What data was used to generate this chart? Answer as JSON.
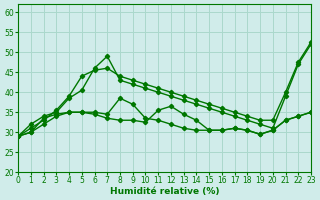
{
  "background_color": "#d0ecea",
  "grid_color": "#aad8cc",
  "line_color": "#007700",
  "xlabel": "Humidité relative (%)",
  "ylim": [
    20,
    62
  ],
  "xlim": [
    0,
    23
  ],
  "yticks": [
    20,
    25,
    30,
    35,
    40,
    45,
    50,
    55,
    60
  ],
  "xticks": [
    0,
    1,
    2,
    3,
    4,
    5,
    6,
    7,
    8,
    9,
    10,
    11,
    12,
    13,
    14,
    15,
    16,
    17,
    18,
    19,
    20,
    21,
    22,
    23
  ],
  "series": [
    [
      29,
      32,
      34,
      35,
      38.5,
      40.5,
      46,
      49,
      43,
      42,
      41,
      40,
      39,
      38,
      37,
      36,
      35,
      34,
      33,
      32,
      31,
      39,
      47,
      52
    ],
    [
      29,
      31,
      33,
      35.5,
      39,
      44,
      45.5,
      46,
      44,
      43,
      42,
      41,
      40,
      39,
      38,
      37,
      36,
      35,
      34,
      33,
      33,
      40,
      47.5,
      52.5
    ],
    [
      29,
      30,
      33.5,
      34.5,
      35,
      35,
      34.5,
      33.5,
      33,
      33,
      32.5,
      35.5,
      36.5,
      34.5,
      33,
      30.5,
      30.5,
      31,
      30.5,
      29.5,
      30.5,
      33,
      34,
      35
    ],
    [
      29,
      30,
      32,
      34,
      35,
      35,
      35,
      34.5,
      38.5,
      37,
      33.5,
      33,
      32,
      31,
      30.5,
      30.5,
      30.5,
      31,
      30.5,
      29.5,
      30.5,
      33,
      34,
      35
    ]
  ]
}
